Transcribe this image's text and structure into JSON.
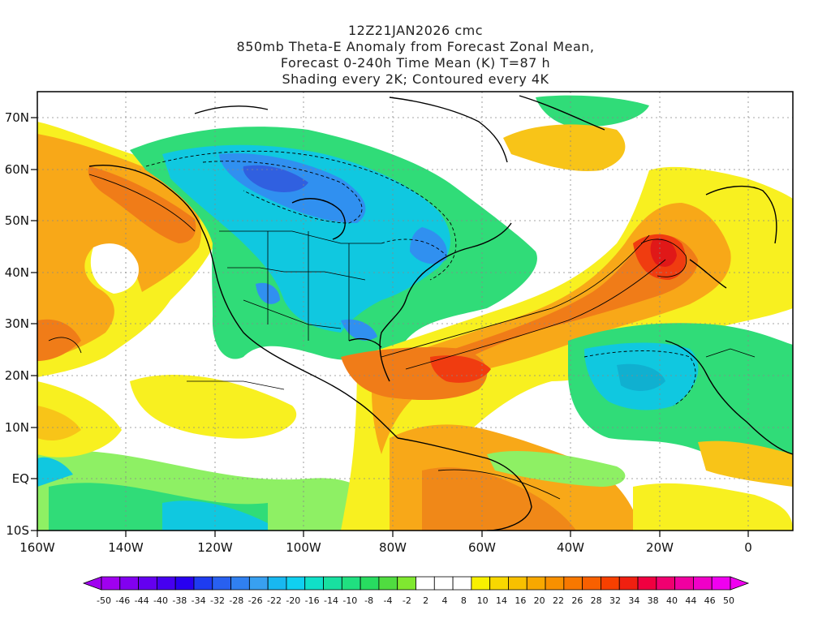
{
  "title": {
    "lines": [
      "12Z21JAN2026 cmc",
      "850mb Theta-E Anomaly from Forecast Zonal Mean,",
      "Forecast 0-240h Time Mean (K) T=87 h",
      "Shading every 2K; Contoured every 4K"
    ]
  },
  "axes": {
    "x_ticks": [
      "160W",
      "140W",
      "120W",
      "100W",
      "80W",
      "60W",
      "40W",
      "20W",
      "0"
    ],
    "y_ticks": [
      "70N",
      "60N",
      "50N",
      "40N",
      "30N",
      "20N",
      "10N",
      "EQ",
      "10S"
    ]
  },
  "colorbar": {
    "labels": [
      "-50",
      "-46",
      "-44",
      "-40",
      "-38",
      "-34",
      "-32",
      "-28",
      "-26",
      "-22",
      "-20",
      "-16",
      "-14",
      "-10",
      "-8",
      "-4",
      "-2",
      "2",
      "4",
      "8",
      "10",
      "14",
      "16",
      "20",
      "22",
      "26",
      "28",
      "32",
      "34",
      "38",
      "40",
      "44",
      "46",
      "50"
    ]
  },
  "colors": {
    "strong_negative": "#3060e0",
    "negative": "#10c8e0",
    "weak_negative": "#30dc78",
    "near_zero": "#ffffff",
    "weak_positive": "#f8f020",
    "positive": "#f8a818",
    "strong_positive": "#f03c10",
    "extreme_positive": "#e01818",
    "ocean_neutral": "#ffffff"
  }
}
